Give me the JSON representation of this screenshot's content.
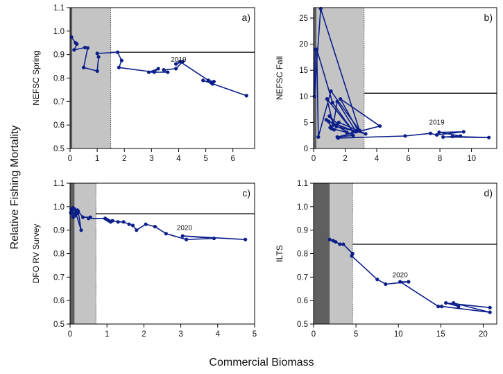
{
  "figure": {
    "ylabel": "Relative Fishing Mortality",
    "xlabel": "Commercial Biomass"
  },
  "colors": {
    "series": "#0b1e8a",
    "dark_zone": "#5f5f5f",
    "light_zone": "#c4c4c4",
    "ref_line": "#000000"
  },
  "chart_data": [
    {
      "id": "a",
      "type": "line",
      "tag": "a)",
      "ylabel": "NEFSC Spring",
      "xlim": [
        0,
        6.8
      ],
      "ylim": [
        0.5,
        1.1
      ],
      "xticks": [
        "0",
        "1",
        "2",
        "3",
        "4",
        "5",
        "6"
      ],
      "yticks": [
        "0.5",
        "0.6",
        "0.7",
        "0.8",
        "0.9",
        "1.0",
        "1.1"
      ],
      "dark_zone_x": [
        0,
        0.08
      ],
      "light_zone_x": [
        0.08,
        1.5
      ],
      "ref_line": {
        "y": 0.91,
        "x_from": 1.5
      },
      "annotation": {
        "text": "2019",
        "x": 4.0,
        "y": 0.87
      },
      "series": [
        {
          "x": [
            0.05,
            0.2,
            0.25,
            0.15,
            0.55,
            0.65,
            0.5,
            1.0,
            1.05,
            1.0,
            1.75,
            1.9,
            1.8,
            3.1,
            3.25,
            2.9,
            3.6,
            3.45,
            3.9,
            4.15,
            3.9,
            4.05,
            5.1,
            5.3,
            5.25,
            5.2,
            4.9,
            6.5
          ],
          "y": [
            0.975,
            0.95,
            0.945,
            0.92,
            0.93,
            0.928,
            0.845,
            0.83,
            0.89,
            0.905,
            0.91,
            0.875,
            0.845,
            0.825,
            0.84,
            0.825,
            0.825,
            0.835,
            0.84,
            0.87,
            0.86,
            0.87,
            0.79,
            0.785,
            0.775,
            0.78,
            0.79,
            0.725
          ]
        }
      ]
    },
    {
      "id": "b",
      "type": "line",
      "tag": "b)",
      "ylabel": "NEFSC Fall",
      "xlim": [
        0,
        11.6
      ],
      "ylim": [
        0,
        27
      ],
      "xticks": [
        "0",
        "2",
        "4",
        "6",
        "8",
        "10"
      ],
      "yticks": [
        "0",
        "5",
        "10",
        "15",
        "20",
        "25"
      ],
      "dark_zone_x": [
        0,
        0.18
      ],
      "light_zone_x": [
        0.18,
        3.2
      ],
      "ref_line": {
        "y": 10.6,
        "x_from": 3.2
      },
      "annotation": {
        "text": "2019",
        "x": 7.8,
        "y": 4.6
      },
      "series": [
        {
          "x": [
            0.1,
            0.05,
            0.45,
            2.9,
            1.1,
            0.3,
            0.2,
            1.2,
            2.5,
            0.85,
            1.25,
            1.5,
            2.7,
            0.95,
            1.15,
            2.1,
            1.0,
            1.45,
            3.3,
            1.6,
            1.05,
            1.3,
            0.8,
            2.5,
            1.5,
            4.2,
            1.7,
            2.8,
            1.55,
            5.8,
            7.4,
            7.8,
            9.5,
            7.95,
            9.3,
            8.2,
            11.1,
            8.8
          ],
          "y": [
            19,
            10,
            26.8,
            3.5,
            11,
            2.2,
            19,
            8.8,
            3.3,
            9.5,
            4.5,
            9,
            3.2,
            5.2,
            3.8,
            3.1,
            6.2,
            4.2,
            2.8,
            5,
            4,
            3.6,
            5.5,
            2.5,
            2.2,
            4.3,
            9.5,
            3.5,
            2,
            2.4,
            2.9,
            2.6,
            3.2,
            3.1,
            2.4,
            2.2,
            2.1,
            2.3
          ]
        }
      ]
    },
    {
      "id": "c",
      "type": "line",
      "tag": "c)",
      "ylabel": "DFO RV Survey",
      "xlim": [
        0,
        5
      ],
      "ylim": [
        0.5,
        1.1
      ],
      "xticks": [
        "0",
        "1",
        "2",
        "3",
        "4",
        "5"
      ],
      "yticks": [
        "0.5",
        "0.6",
        "0.7",
        "0.8",
        "0.9",
        "1.0",
        "1.1"
      ],
      "dark_zone_x": [
        0,
        0.12
      ],
      "light_zone_x": [
        0.12,
        0.7
      ],
      "ref_line": {
        "y": 0.97,
        "x_from": 0.7
      },
      "annotation": {
        "text": "2020",
        "x": 3.1,
        "y": 0.9
      },
      "series": [
        {
          "x": [
            0.03,
            0.08,
            0.06,
            0.02,
            0.12,
            0.18,
            0.08,
            0.22,
            0.3,
            0.15,
            0.12,
            0.05,
            0.2,
            0.35,
            0.55,
            0.5,
            0.95,
            1.05,
            1.1,
            1.0,
            1.15,
            1.3,
            1.45,
            1.6,
            1.7,
            1.8,
            2.05,
            2.3,
            2.6,
            3.15,
            3.9,
            3.05,
            4.75
          ],
          "y": [
            0.99,
            0.995,
            0.985,
            0.975,
            0.99,
            0.97,
            0.955,
            0.98,
            0.9,
            0.975,
            0.96,
            0.97,
            0.985,
            0.955,
            0.955,
            0.95,
            0.95,
            0.94,
            0.935,
            0.945,
            0.94,
            0.935,
            0.935,
            0.925,
            0.92,
            0.9,
            0.925,
            0.915,
            0.885,
            0.86,
            0.865,
            0.875,
            0.86
          ]
        }
      ]
    },
    {
      "id": "d",
      "type": "line",
      "tag": "d)",
      "ylabel": "ILTS",
      "xlim": [
        0,
        21.6
      ],
      "ylim": [
        0.5,
        1.1
      ],
      "xticks": [
        "0",
        "5",
        "10",
        "15",
        "20"
      ],
      "yticks": [
        "0.5",
        "0.6",
        "0.7",
        "0.8",
        "0.9",
        "1.0",
        "1.1"
      ],
      "dark_zone_x": [
        0,
        1.9
      ],
      "light_zone_x": [
        1.9,
        4.6
      ],
      "ref_line": {
        "y": 0.84,
        "x_from": 4.6
      },
      "annotation": {
        "text": "2020",
        "x": 10.2,
        "y": 0.7
      },
      "series": [
        {
          "x": [
            1.9,
            2.3,
            2.6,
            3.1,
            3.5,
            4.6,
            4.5,
            7.5,
            8.5,
            11.2,
            10.2,
            14.7,
            15.1,
            20.8,
            16.5,
            17.1,
            15.6,
            20.8
          ],
          "y": [
            0.86,
            0.855,
            0.85,
            0.84,
            0.84,
            0.8,
            0.79,
            0.69,
            0.67,
            0.68,
            0.68,
            0.575,
            0.575,
            0.55,
            0.59,
            0.575,
            0.59,
            0.57
          ]
        }
      ]
    }
  ]
}
